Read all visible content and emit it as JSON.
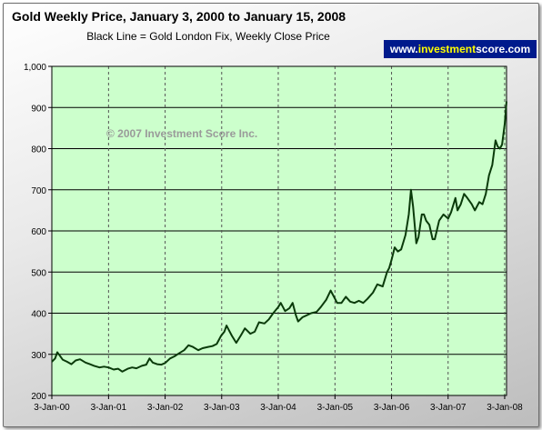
{
  "brand": {
    "prefix": "www.",
    "highlight": "investment",
    "suffix": "score.com",
    "bg_color": "#001a8c",
    "text_color": "#ffffff",
    "highlight_color": "#ffff00"
  },
  "colors": {
    "plot_bg": "#ccffcc",
    "line": "#0a3a0a",
    "grid": "#000000"
  },
  "chart_data": {
    "type": "line",
    "title": "Gold Weekly Price, January 3, 2000 to January 15, 2008",
    "subtitle": "Black Line = Gold London Fix, Weekly Close Price",
    "annotation": "© 2007 Investment Score Inc.",
    "xlabel": "",
    "ylabel": "",
    "ylim": [
      200,
      1000
    ],
    "yticks": [
      200,
      300,
      400,
      500,
      600,
      700,
      800,
      900,
      1000
    ],
    "ytick_labels": [
      "200",
      "300",
      "400",
      "500",
      "600",
      "700",
      "800",
      "900",
      "1,000"
    ],
    "xlim": [
      "2000-01-03",
      "2008-01-15"
    ],
    "xticks": [
      "2000-01-03",
      "2001-01-03",
      "2002-01-03",
      "2003-01-03",
      "2004-01-03",
      "2005-01-03",
      "2006-01-03",
      "2007-01-03",
      "2008-01-03"
    ],
    "xtick_labels": [
      "3-Jan-00",
      "3-Jan-01",
      "3-Jan-02",
      "3-Jan-03",
      "3-Jan-04",
      "3-Jan-05",
      "3-Jan-06",
      "3-Jan-07",
      "3-Jan-08"
    ],
    "grid": {
      "horizontal": "solid",
      "vertical": "dashed"
    },
    "series": [
      {
        "points": [
          [
            "2000-01-03",
            282
          ],
          [
            "2000-01-24",
            290
          ],
          [
            "2000-02-07",
            305
          ],
          [
            "2000-02-21",
            298
          ],
          [
            "2000-03-13",
            287
          ],
          [
            "2000-04-10",
            282
          ],
          [
            "2000-05-08",
            276
          ],
          [
            "2000-06-05",
            285
          ],
          [
            "2000-07-03",
            288
          ],
          [
            "2000-08-07",
            280
          ],
          [
            "2000-09-04",
            276
          ],
          [
            "2000-10-02",
            272
          ],
          [
            "2000-11-06",
            268
          ],
          [
            "2000-12-04",
            270
          ],
          [
            "2001-01-03",
            268
          ],
          [
            "2001-02-05",
            263
          ],
          [
            "2001-03-05",
            265
          ],
          [
            "2001-04-02",
            258
          ],
          [
            "2001-05-07",
            265
          ],
          [
            "2001-06-04",
            268
          ],
          [
            "2001-07-02",
            266
          ],
          [
            "2001-08-06",
            272
          ],
          [
            "2001-09-03",
            275
          ],
          [
            "2001-09-24",
            290
          ],
          [
            "2001-10-15",
            280
          ],
          [
            "2001-11-12",
            276
          ],
          [
            "2001-12-10",
            275
          ],
          [
            "2002-01-03",
            279
          ],
          [
            "2002-02-04",
            290
          ],
          [
            "2002-03-04",
            295
          ],
          [
            "2002-04-01",
            302
          ],
          [
            "2002-05-06",
            310
          ],
          [
            "2002-06-03",
            322
          ],
          [
            "2002-07-01",
            318
          ],
          [
            "2002-08-05",
            310
          ],
          [
            "2002-09-02",
            315
          ],
          [
            "2002-10-07",
            318
          ],
          [
            "2002-11-04",
            320
          ],
          [
            "2002-12-02",
            325
          ],
          [
            "2002-12-30",
            345
          ],
          [
            "2003-01-20",
            355
          ],
          [
            "2003-02-03",
            370
          ],
          [
            "2003-02-17",
            360
          ],
          [
            "2003-03-10",
            345
          ],
          [
            "2003-04-07",
            328
          ],
          [
            "2003-05-05",
            345
          ],
          [
            "2003-06-02",
            363
          ],
          [
            "2003-07-07",
            350
          ],
          [
            "2003-08-04",
            355
          ],
          [
            "2003-09-01",
            378
          ],
          [
            "2003-10-06",
            375
          ],
          [
            "2003-11-03",
            385
          ],
          [
            "2003-12-01",
            400
          ],
          [
            "2004-01-03",
            415
          ],
          [
            "2004-01-19",
            425
          ],
          [
            "2004-02-16",
            405
          ],
          [
            "2004-03-15",
            412
          ],
          [
            "2004-04-05",
            425
          ],
          [
            "2004-04-26",
            395
          ],
          [
            "2004-05-10",
            380
          ],
          [
            "2004-06-07",
            390
          ],
          [
            "2004-07-05",
            395
          ],
          [
            "2004-08-02",
            400
          ],
          [
            "2004-09-06",
            403
          ],
          [
            "2004-10-04",
            415
          ],
          [
            "2004-11-08",
            433
          ],
          [
            "2004-12-06",
            455
          ],
          [
            "2004-12-27",
            440
          ],
          [
            "2005-01-17",
            425
          ],
          [
            "2005-02-14",
            425
          ],
          [
            "2005-03-14",
            440
          ],
          [
            "2005-04-11",
            428
          ],
          [
            "2005-05-09",
            425
          ],
          [
            "2005-06-06",
            430
          ],
          [
            "2005-07-04",
            425
          ],
          [
            "2005-08-01",
            435
          ],
          [
            "2005-09-05",
            450
          ],
          [
            "2005-10-03",
            470
          ],
          [
            "2005-11-07",
            465
          ],
          [
            "2005-12-05",
            500
          ],
          [
            "2005-12-19",
            510
          ],
          [
            "2006-01-03",
            530
          ],
          [
            "2006-01-23",
            560
          ],
          [
            "2006-02-13",
            550
          ],
          [
            "2006-03-06",
            555
          ],
          [
            "2006-04-03",
            590
          ],
          [
            "2006-04-24",
            640
          ],
          [
            "2006-05-08",
            700
          ],
          [
            "2006-05-22",
            660
          ],
          [
            "2006-06-12",
            570
          ],
          [
            "2006-06-26",
            585
          ],
          [
            "2006-07-17",
            640
          ],
          [
            "2006-07-31",
            640
          ],
          [
            "2006-08-14",
            625
          ],
          [
            "2006-09-04",
            615
          ],
          [
            "2006-09-25",
            580
          ],
          [
            "2006-10-09",
            580
          ],
          [
            "2006-11-06",
            625
          ],
          [
            "2006-12-04",
            640
          ],
          [
            "2007-01-03",
            630
          ],
          [
            "2007-01-22",
            645
          ],
          [
            "2007-02-19",
            680
          ],
          [
            "2007-03-05",
            650
          ],
          [
            "2007-03-26",
            665
          ],
          [
            "2007-04-16",
            690
          ],
          [
            "2007-05-07",
            680
          ],
          [
            "2007-06-04",
            665
          ],
          [
            "2007-06-25",
            650
          ],
          [
            "2007-07-23",
            670
          ],
          [
            "2007-08-13",
            665
          ],
          [
            "2007-09-03",
            690
          ],
          [
            "2007-09-24",
            735
          ],
          [
            "2007-10-15",
            760
          ],
          [
            "2007-11-05",
            820
          ],
          [
            "2007-11-19",
            805
          ],
          [
            "2007-12-03",
            800
          ],
          [
            "2007-12-17",
            810
          ],
          [
            "2008-01-03",
            860
          ],
          [
            "2008-01-15",
            915
          ]
        ]
      }
    ]
  }
}
